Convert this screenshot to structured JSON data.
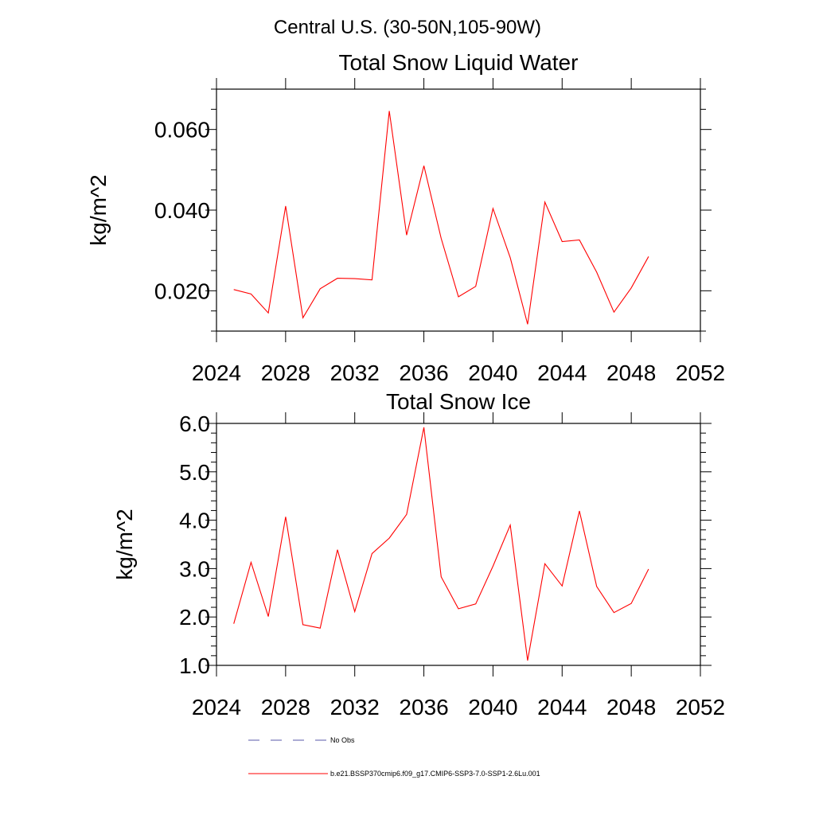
{
  "suptitle": "Central U.S. (30-50N,105-90W)",
  "colors": {
    "series": "#ff0000",
    "obs": "#5a5aa8",
    "axis": "#000000"
  },
  "chart_data": [
    {
      "type": "line",
      "title": "Total Snow Liquid Water",
      "ylabel": "kg/m^2",
      "xlabel": "",
      "xlim": [
        2024,
        2052
      ],
      "ylim": [
        0.01,
        0.07
      ],
      "x_ticks": [
        2024,
        2028,
        2032,
        2036,
        2040,
        2044,
        2048,
        2052
      ],
      "x_tick_labels": [
        "2024",
        "2028",
        "2032",
        "2036",
        "2040",
        "2044",
        "2048",
        "2052"
      ],
      "y_ticks": [
        0.02,
        0.04,
        0.06
      ],
      "y_tick_labels": [
        "0.020",
        "0.040",
        "0.060"
      ],
      "y_minor_step": 0.005,
      "grid": false,
      "series": [
        {
          "name": "b.e21.BSSP370cmip6.f09_g17.CMIP6-SSP3-7.0-SSP1-2.6Lu.001",
          "x": [
            2025,
            2026,
            2027,
            2028,
            2029,
            2030,
            2031,
            2032,
            2033,
            2034,
            2035,
            2036,
            2037,
            2038,
            2039,
            2040,
            2041,
            2042,
            2043,
            2044,
            2045,
            2046,
            2047,
            2048,
            2049
          ],
          "values": [
            0.0203,
            0.0192,
            0.0145,
            0.041,
            0.0133,
            0.0205,
            0.0231,
            0.023,
            0.0227,
            0.0646,
            0.0338,
            0.051,
            0.033,
            0.0185,
            0.0211,
            0.0404,
            0.0282,
            0.0117,
            0.042,
            0.0322,
            0.0326,
            0.0246,
            0.0147,
            0.0207,
            0.0285
          ]
        }
      ]
    },
    {
      "type": "line",
      "title": "Total Snow Ice",
      "ylabel": "kg/m^2",
      "xlabel": "",
      "xlim": [
        2024,
        2052
      ],
      "ylim": [
        1.0,
        6.0
      ],
      "x_ticks": [
        2024,
        2028,
        2032,
        2036,
        2040,
        2044,
        2048,
        2052
      ],
      "x_tick_labels": [
        "2024",
        "2028",
        "2032",
        "2036",
        "2040",
        "2044",
        "2048",
        "2052"
      ],
      "y_ticks": [
        1,
        2,
        3,
        4,
        5,
        6
      ],
      "y_tick_labels": [
        "1.0",
        "2.0",
        "3.0",
        "4.0",
        "5.0",
        "6.0"
      ],
      "y_minor_step": 0.2,
      "grid": false,
      "series": [
        {
          "name": "b.e21.BSSP370cmip6.f09_g17.CMIP6-SSP3-7.0-SSP1-2.6Lu.001",
          "x": [
            2025,
            2026,
            2027,
            2028,
            2029,
            2030,
            2031,
            2032,
            2033,
            2034,
            2035,
            2036,
            2037,
            2038,
            2039,
            2040,
            2041,
            2042,
            2043,
            2044,
            2045,
            2046,
            2047,
            2048,
            2049
          ],
          "values": [
            1.86,
            3.13,
            2.01,
            4.07,
            1.84,
            1.77,
            3.39,
            2.11,
            3.31,
            3.63,
            4.12,
            5.92,
            2.83,
            2.17,
            2.27,
            3.05,
            3.9,
            1.1,
            3.1,
            2.64,
            4.19,
            2.63,
            2.09,
            2.28,
            2.99
          ]
        }
      ]
    }
  ],
  "legend": {
    "placement": "bottom",
    "entries": [
      {
        "label": "No Obs",
        "style": "dashed"
      },
      {
        "label": "b.e21.BSSP370cmip6.f09_g17.CMIP6-SSP3-7.0-SSP1-2.6Lu.001",
        "style": "solid"
      }
    ]
  }
}
